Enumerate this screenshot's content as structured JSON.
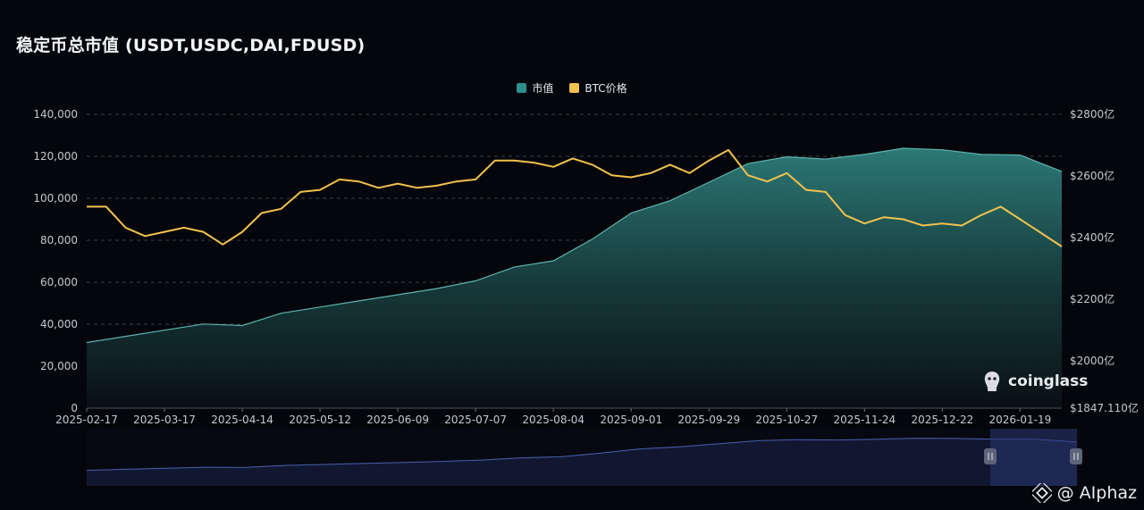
{
  "chart_data": {
    "type": "area",
    "title": "稳定币总市值 (USDT,USDC,DAI,FDUSD)",
    "legend": [
      {
        "name": "市值",
        "color": "#2f8f8f"
      },
      {
        "name": "BTC价格",
        "color": "#f2c14e"
      }
    ],
    "legend_position": "top-center",
    "x_ticks": [
      "2025-02-17",
      "2025-03-17",
      "2025-04-14",
      "2025-05-12",
      "2025-06-09",
      "2025-07-07",
      "2025-08-04",
      "2025-09-01",
      "2025-09-29",
      "2025-10-27",
      "2025-11-24",
      "2025-12-22",
      "2026-01-19"
    ],
    "left_axis": {
      "ticks": [
        "0",
        "20,000",
        "40,000",
        "60,000",
        "80,000",
        "100,000",
        "120,000",
        "140,000"
      ],
      "range": [
        0,
        140000
      ]
    },
    "right_axis": {
      "ticks": [
        "$1847.110亿",
        "$2000亿",
        "$2200亿",
        "$2400亿",
        "$2600亿",
        "$2800亿"
      ],
      "range": [
        1847.11,
        2800
      ],
      "unit": "亿"
    },
    "grid": "dashed horizontal",
    "series": [
      {
        "name": "市值",
        "axis": "right",
        "x": [
          "2025-02-17",
          "2025-03-03",
          "2025-03-17",
          "2025-03-31",
          "2025-04-14",
          "2025-04-28",
          "2025-05-12",
          "2025-05-26",
          "2025-06-09",
          "2025-06-23",
          "2025-07-07",
          "2025-07-21",
          "2025-08-04",
          "2025-08-18",
          "2025-09-01",
          "2025-09-15",
          "2025-09-29",
          "2025-10-13",
          "2025-10-27",
          "2025-11-10",
          "2025-11-24",
          "2025-12-08",
          "2025-12-22",
          "2026-01-05",
          "2026-01-19",
          "2026-02-03"
        ],
        "values": [
          2060,
          2080,
          2100,
          2120,
          2115,
          2155,
          2175,
          2195,
          2215,
          2235,
          2260,
          2305,
          2325,
          2395,
          2480,
          2520,
          2580,
          2640,
          2662,
          2655,
          2670,
          2690,
          2685,
          2670,
          2668,
          2615
        ]
      },
      {
        "name": "BTC价格",
        "axis": "left",
        "x": [
          "2025-02-17",
          "2025-02-24",
          "2025-03-03",
          "2025-03-10",
          "2025-03-17",
          "2025-03-24",
          "2025-03-31",
          "2025-04-07",
          "2025-04-14",
          "2025-04-21",
          "2025-04-28",
          "2025-05-05",
          "2025-05-12",
          "2025-05-19",
          "2025-05-26",
          "2025-06-02",
          "2025-06-09",
          "2025-06-16",
          "2025-06-23",
          "2025-06-30",
          "2025-07-07",
          "2025-07-14",
          "2025-07-21",
          "2025-07-28",
          "2025-08-04",
          "2025-08-11",
          "2025-08-18",
          "2025-08-25",
          "2025-09-01",
          "2025-09-08",
          "2025-09-15",
          "2025-09-22",
          "2025-09-29",
          "2025-10-06",
          "2025-10-13",
          "2025-10-20",
          "2025-10-27",
          "2025-11-03",
          "2025-11-10",
          "2025-11-17",
          "2025-11-24",
          "2025-12-01",
          "2025-12-08",
          "2025-12-15",
          "2025-12-22",
          "2025-12-29",
          "2026-01-05",
          "2026-01-12",
          "2026-01-19",
          "2026-02-03"
        ],
        "values": [
          96000,
          96000,
          86000,
          82000,
          84000,
          86000,
          84000,
          78000,
          84000,
          93000,
          95000,
          103000,
          104000,
          109000,
          108000,
          105000,
          107000,
          105000,
          106000,
          108000,
          109000,
          118000,
          118000,
          117000,
          115000,
          119000,
          116000,
          111000,
          110000,
          112000,
          116000,
          112000,
          118000,
          123000,
          111000,
          108000,
          112000,
          104000,
          103000,
          92000,
          88000,
          91000,
          90000,
          87000,
          88000,
          87000,
          92000,
          96000,
          90000,
          77000
        ]
      }
    ]
  },
  "brand": {
    "logo_text": "coinglass"
  },
  "watermark": {
    "text": "@ AIphaz"
  }
}
